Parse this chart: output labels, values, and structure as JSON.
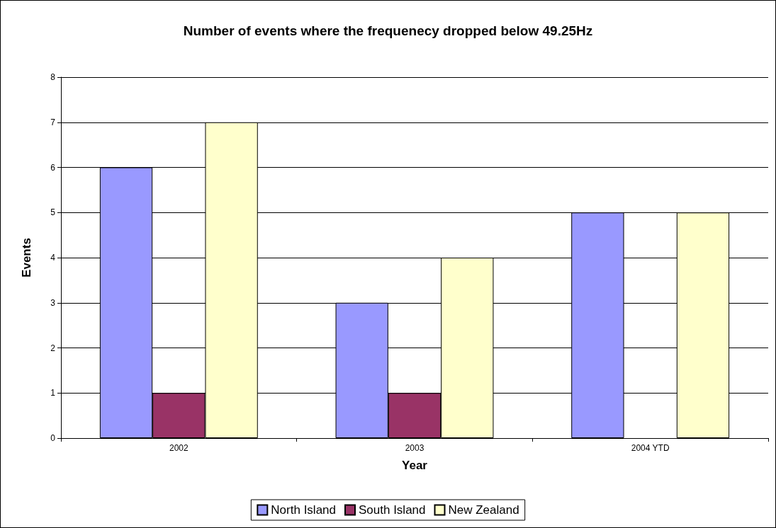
{
  "chart_data": {
    "type": "bar",
    "title": "Number of events where the frequenecy dropped below 49.25Hz",
    "xlabel": "Year",
    "ylabel": "Events",
    "categories": [
      "2002",
      "2003",
      "2004 YTD"
    ],
    "series": [
      {
        "name": "North Island",
        "color": "#9999ff",
        "values": [
          6,
          3,
          5
        ]
      },
      {
        "name": "South Island",
        "color": "#993366",
        "values": [
          1,
          1,
          0
        ]
      },
      {
        "name": "New Zealand",
        "color": "#ffffcc",
        "values": [
          7,
          4,
          5
        ]
      }
    ],
    "ylim": [
      0,
      8
    ],
    "yticks": [
      0,
      1,
      2,
      3,
      4,
      5,
      6,
      7,
      8
    ],
    "grid": "y",
    "legend": "bottom"
  }
}
